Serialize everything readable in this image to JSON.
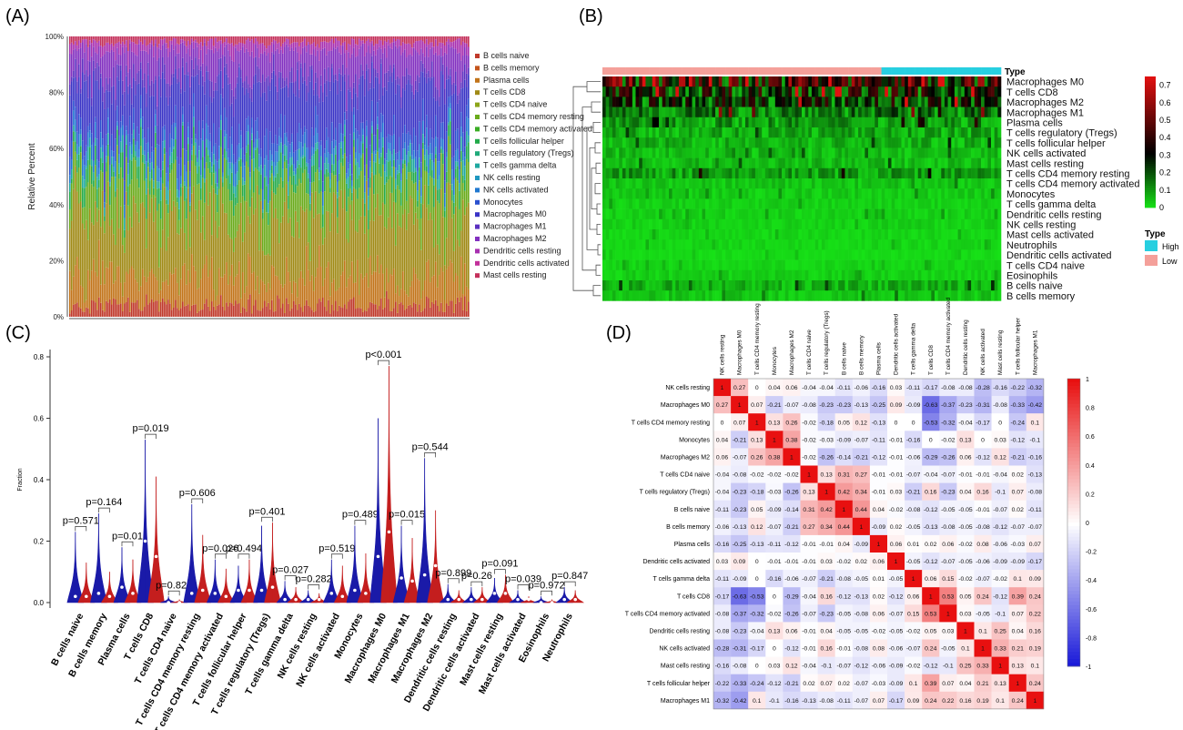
{
  "panels": {
    "a": {
      "letter": "(A)"
    },
    "b": {
      "letter": "(B)"
    },
    "c": {
      "letter": "(C)"
    },
    "d": {
      "letter": "(D)"
    }
  },
  "colors": {
    "low": "#f4a09a",
    "high": "#27cfe0",
    "violin_low": "#1a1aa8",
    "violin_high": "#c41e1e",
    "heat_low": "#17e417",
    "heat_mid": "#000000",
    "heat_high": "#e01010",
    "corr_neg": "#1515d8",
    "corr_zero": "#ffffff",
    "corr_pos": "#e81010"
  },
  "chart_data": [
    {
      "panel": "A",
      "type": "bar",
      "stacked": true,
      "ylabel": "Relative Percent",
      "yticks": [
        "0%",
        "20%",
        "40%",
        "60%",
        "80%",
        "100%"
      ],
      "ylim": [
        0,
        1
      ],
      "legend_position": "right",
      "legend": [
        {
          "name": "B cells naive",
          "color": "#c0392b"
        },
        {
          "name": "B cells memory",
          "color": "#c4541b"
        },
        {
          "name": "Plasma cells",
          "color": "#c2741a"
        },
        {
          "name": "T cells CD8",
          "color": "#a08a16"
        },
        {
          "name": "T cells CD4 naive",
          "color": "#8ca51a"
        },
        {
          "name": "T cells CD4 memory resting",
          "color": "#6aab1c"
        },
        {
          "name": "T cells CD4 memory activated",
          "color": "#3aad24"
        },
        {
          "name": "T cells follicular helper",
          "color": "#22aa4a"
        },
        {
          "name": "T cells regulatory (Tregs)",
          "color": "#20aa7a"
        },
        {
          "name": "T cells gamma delta",
          "color": "#1fa8a0"
        },
        {
          "name": "NK cells resting",
          "color": "#1f98c0"
        },
        {
          "name": "NK cells activated",
          "color": "#2078d0"
        },
        {
          "name": "Monocytes",
          "color": "#2a50cf"
        },
        {
          "name": "Macrophages M0",
          "color": "#3a34c6"
        },
        {
          "name": "Macrophages M1",
          "color": "#5a30c0"
        },
        {
          "name": "Macrophages M2",
          "color": "#8230c0"
        },
        {
          "name": "Dendritic cells resting",
          "color": "#a830b0"
        },
        {
          "name": "Dendritic cells activated",
          "color": "#c2309a"
        },
        {
          "name": "Mast cells resting",
          "color": "#c4305a"
        }
      ],
      "stack_profile": [
        {
          "color": "#c0392b",
          "share": 0.04
        },
        {
          "color": "#c2741a",
          "share": 0.1
        },
        {
          "color": "#a08a16",
          "share": 0.22
        },
        {
          "color": "#6aab1c",
          "share": 0.12
        },
        {
          "color": "#22aa4a",
          "share": 0.05
        },
        {
          "color": "#1fa8a0",
          "share": 0.03
        },
        {
          "color": "#2078d0",
          "share": 0.04
        },
        {
          "color": "#2a50cf",
          "share": 0.05
        },
        {
          "color": "#3a34c6",
          "share": 0.17
        },
        {
          "color": "#5a30c0",
          "share": 0.04
        },
        {
          "color": "#8230c0",
          "share": 0.09
        },
        {
          "color": "#a830b0",
          "share": 0.03
        },
        {
          "color": "#c4305a",
          "share": 0.02
        }
      ]
    },
    {
      "panel": "B",
      "type": "heatmap",
      "annotation_label": "Type",
      "annotation_split": 0.7,
      "rows": [
        "Macrophages M0",
        "T cells CD8",
        "Macrophages M2",
        "Macrophages M1",
        "Plasma cells",
        "T cells regulatory (Tregs)",
        "T cells follicular helper",
        "NK cells activated",
        "Mast cells resting",
        "T cells CD4 memory resting",
        "T cells CD4 memory activated",
        "Monocytes",
        "T cells gamma delta",
        "Dendritic cells resting",
        "NK cells resting",
        "Mast cells activated",
        "Neutrophils",
        "Dendritic cells activated",
        "T cells CD4 naive",
        "Eosinophils",
        "B cells naive",
        "B cells memory"
      ],
      "row_level": [
        0.55,
        0.4,
        0.35,
        0.22,
        0.15,
        0.12,
        0.1,
        0.08,
        0.08,
        0.14,
        0.06,
        0.05,
        0.04,
        0.04,
        0.04,
        0.03,
        0.03,
        0.02,
        0.03,
        0.04,
        0.1,
        0.06
      ],
      "colorbar_ticks": [
        "0.7",
        "0.6",
        "0.5",
        "0.4",
        "0.3",
        "0.2",
        "0.1",
        "0"
      ],
      "colorbar_range": [
        0,
        0.75
      ],
      "legend_title": "Type",
      "legend": [
        {
          "name": "High",
          "color": "#27cfe0"
        },
        {
          "name": "Low",
          "color": "#f4a09a"
        }
      ]
    },
    {
      "panel": "C",
      "type": "violin",
      "ylabel": "Fraction",
      "ylim": [
        0,
        0.8
      ],
      "yticks": [
        "0.0",
        "0.2",
        "0.4",
        "0.6",
        "0.8"
      ],
      "categories": [
        "B cells naive",
        "B cells memory",
        "Plasma cells",
        "T cells CD8",
        "T cells CD4 naive",
        "T cells CD4 memory resting",
        "T cells CD4 memory activated",
        "T cells follicular helper",
        "T cells regulatory (Tregs)",
        "T cells gamma delta",
        "NK cells resting",
        "NK cells activated",
        "Monocytes",
        "Macrophages M0",
        "Macrophages M1",
        "Macrophages M2",
        "Dendritic cells resting",
        "Dendritic cells activated",
        "Mast cells resting",
        "Mast cells activated",
        "Eosinophils",
        "Neutrophils"
      ],
      "pvalues": [
        "p=0.571",
        "p=0.164",
        "p=0.01",
        "p=0.019",
        "p=0.822",
        "p=0.606",
        "p=0.026",
        "p=0.494",
        "p=0.401",
        "p=0.027",
        "p=0.282",
        "p=0.519",
        "p=0.489",
        "p<0.001",
        "p=0.015",
        "p=0.544",
        "p=0.899",
        "p=0.26",
        "p=0.091",
        "p=0.039",
        "p=0.972",
        "p=0.847"
      ],
      "low": {
        "max": [
          0.23,
          0.29,
          0.18,
          0.53,
          0.02,
          0.32,
          0.14,
          0.12,
          0.25,
          0.07,
          0.04,
          0.14,
          0.25,
          0.6,
          0.25,
          0.47,
          0.06,
          0.05,
          0.08,
          0.04,
          0.02,
          0.05
        ],
        "median": [
          0.02,
          0.03,
          0.05,
          0.2,
          0,
          0.03,
          0.03,
          0.04,
          0.04,
          0.01,
          0.01,
          0.03,
          0.04,
          0.15,
          0.08,
          0.09,
          0.01,
          0.01,
          0.03,
          0.01,
          0,
          0.01
        ]
      },
      "high": {
        "max": [
          0.13,
          0.1,
          0.14,
          0.41,
          0.01,
          0.22,
          0.11,
          0.14,
          0.26,
          0.05,
          0.03,
          0.12,
          0.16,
          0.77,
          0.21,
          0.3,
          0.04,
          0.05,
          0.09,
          0.02,
          0.01,
          0.04
        ],
        "median": [
          0.02,
          0.02,
          0.03,
          0.15,
          0,
          0.04,
          0.02,
          0.04,
          0.05,
          0.01,
          0.01,
          0.02,
          0.03,
          0.23,
          0.07,
          0.12,
          0.01,
          0.01,
          0.03,
          0.01,
          0,
          0.01
        ]
      }
    },
    {
      "panel": "D",
      "type": "heatmap",
      "labels": [
        "NK cells resting",
        "Macrophages M0",
        "T cells CD4 memory resting",
        "Monocytes",
        "Macrophages M2",
        "T cells CD4 naive",
        "T cells regulatory (Tregs)",
        "B cells naive",
        "B cells memory",
        "Plasma cells",
        "Dendritic cells activated",
        "T cells gamma delta",
        "T cells CD8",
        "T cells CD4 memory activated",
        "Dendritic cells resting",
        "NK cells activated",
        "Mast cells resting",
        "T cells follicular helper",
        "Macrophages M1"
      ],
      "matrix": [
        [
          1,
          0.27,
          0,
          0.04,
          0.06,
          -0.04,
          -0.04,
          -0.11,
          -0.06,
          -0.16,
          0.03,
          -0.11,
          -0.17,
          -0.08,
          -0.08,
          -0.28,
          -0.16,
          -0.22,
          -0.32
        ],
        [
          0.27,
          1,
          0.07,
          -0.21,
          -0.07,
          -0.08,
          -0.23,
          -0.23,
          -0.13,
          -0.25,
          0.09,
          -0.09,
          -0.63,
          -0.37,
          -0.23,
          -0.31,
          -0.08,
          -0.33,
          -0.42
        ],
        [
          0,
          0.07,
          1,
          0.13,
          0.26,
          -0.02,
          -0.18,
          0.05,
          0.12,
          -0.13,
          0,
          0,
          -0.53,
          -0.32,
          -0.04,
          -0.17,
          0,
          -0.24,
          0.1
        ],
        [
          0.04,
          -0.21,
          0.13,
          1,
          0.38,
          -0.02,
          -0.03,
          -0.09,
          -0.07,
          -0.11,
          -0.01,
          -0.16,
          0,
          -0.02,
          0.13,
          0,
          0.03,
          -0.12,
          -0.1
        ],
        [
          0.06,
          -0.07,
          0.26,
          0.38,
          1,
          -0.02,
          -0.26,
          -0.14,
          -0.21,
          -0.12,
          -0.01,
          -0.06,
          -0.29,
          -0.26,
          0.06,
          -0.12,
          0.12,
          -0.21,
          -0.16
        ],
        [
          -0.04,
          -0.08,
          -0.02,
          -0.02,
          -0.02,
          1,
          0.13,
          0.31,
          0.27,
          -0.01,
          -0.01,
          -0.07,
          -0.04,
          -0.07,
          -0.01,
          -0.01,
          -0.04,
          0.02,
          -0.13
        ],
        [
          -0.04,
          -0.23,
          -0.18,
          -0.03,
          -0.26,
          0.13,
          1,
          0.42,
          0.34,
          -0.01,
          0.03,
          -0.21,
          0.16,
          -0.23,
          0.04,
          0.16,
          -0.1,
          0.07,
          -0.08
        ],
        [
          -0.11,
          -0.23,
          0.05,
          -0.09,
          -0.14,
          0.31,
          0.42,
          1,
          0.44,
          0.04,
          -0.02,
          -0.08,
          -0.12,
          -0.05,
          -0.05,
          -0.01,
          -0.07,
          0.02,
          -0.11
        ],
        [
          -0.06,
          -0.13,
          0.12,
          -0.07,
          -0.21,
          0.27,
          0.34,
          0.44,
          1,
          -0.09,
          0.02,
          -0.05,
          -0.13,
          -0.08,
          -0.05,
          -0.08,
          -0.12,
          -0.07,
          -0.07
        ],
        [
          -0.16,
          -0.25,
          -0.13,
          -0.11,
          -0.12,
          -0.01,
          -0.01,
          0.04,
          -0.09,
          1,
          0.06,
          0.01,
          0.02,
          0.06,
          -0.02,
          0.08,
          -0.06,
          -0.03,
          0.07
        ],
        [
          0.03,
          0.09,
          0,
          -0.01,
          -0.01,
          -0.01,
          0.03,
          -0.02,
          0.02,
          0.06,
          1,
          -0.05,
          -0.12,
          -0.07,
          -0.05,
          -0.06,
          -0.09,
          -0.09,
          -0.17
        ],
        [
          -0.11,
          -0.09,
          0,
          -0.16,
          -0.06,
          -0.07,
          -0.21,
          -0.08,
          -0.05,
          0.01,
          -0.05,
          1,
          0.06,
          0.15,
          -0.02,
          -0.07,
          -0.02,
          0.1,
          0.09
        ],
        [
          -0.17,
          -0.63,
          -0.53,
          0,
          -0.29,
          -0.04,
          0.16,
          -0.12,
          -0.13,
          0.02,
          -0.12,
          0.06,
          1,
          0.53,
          0.05,
          0.24,
          -0.12,
          0.39,
          0.24
        ],
        [
          -0.08,
          -0.37,
          -0.32,
          -0.02,
          -0.26,
          -0.07,
          -0.23,
          -0.05,
          -0.08,
          0.06,
          -0.07,
          0.15,
          0.53,
          1,
          0.03,
          -0.05,
          -0.1,
          0.07,
          0.22
        ],
        [
          -0.08,
          -0.23,
          -0.04,
          0.13,
          0.06,
          -0.01,
          0.04,
          -0.05,
          -0.05,
          -0.02,
          -0.05,
          -0.02,
          0.05,
          0.03,
          1,
          0.1,
          0.25,
          0.04,
          0.16
        ],
        [
          -0.28,
          -0.31,
          -0.17,
          0,
          -0.12,
          -0.01,
          0.16,
          -0.01,
          -0.08,
          0.08,
          -0.06,
          -0.07,
          0.24,
          -0.05,
          0.1,
          1,
          0.33,
          0.21,
          0.19
        ],
        [
          -0.16,
          -0.08,
          0,
          0.03,
          0.12,
          -0.04,
          -0.1,
          -0.07,
          -0.12,
          -0.06,
          -0.09,
          -0.02,
          -0.12,
          -0.1,
          0.25,
          0.33,
          1,
          0.13,
          0.1
        ],
        [
          -0.22,
          -0.33,
          -0.24,
          -0.12,
          -0.21,
          0.02,
          0.07,
          0.02,
          -0.07,
          -0.03,
          -0.09,
          0.1,
          0.39,
          0.07,
          0.04,
          0.21,
          0.13,
          1,
          0.24
        ],
        [
          -0.32,
          -0.42,
          0.1,
          -0.1,
          -0.16,
          -0.13,
          -0.08,
          -0.11,
          -0.07,
          0.07,
          -0.17,
          0.09,
          0.24,
          0.22,
          0.16,
          0.19,
          0.1,
          0.24,
          1
        ]
      ],
      "colorbar_ticks": [
        "1",
        "0.8",
        "0.6",
        "0.4",
        "0.2",
        "0",
        "-0.2",
        "-0.4",
        "-0.6",
        "-0.8",
        "-1"
      ],
      "colorbar_range": [
        -1,
        1
      ]
    }
  ]
}
